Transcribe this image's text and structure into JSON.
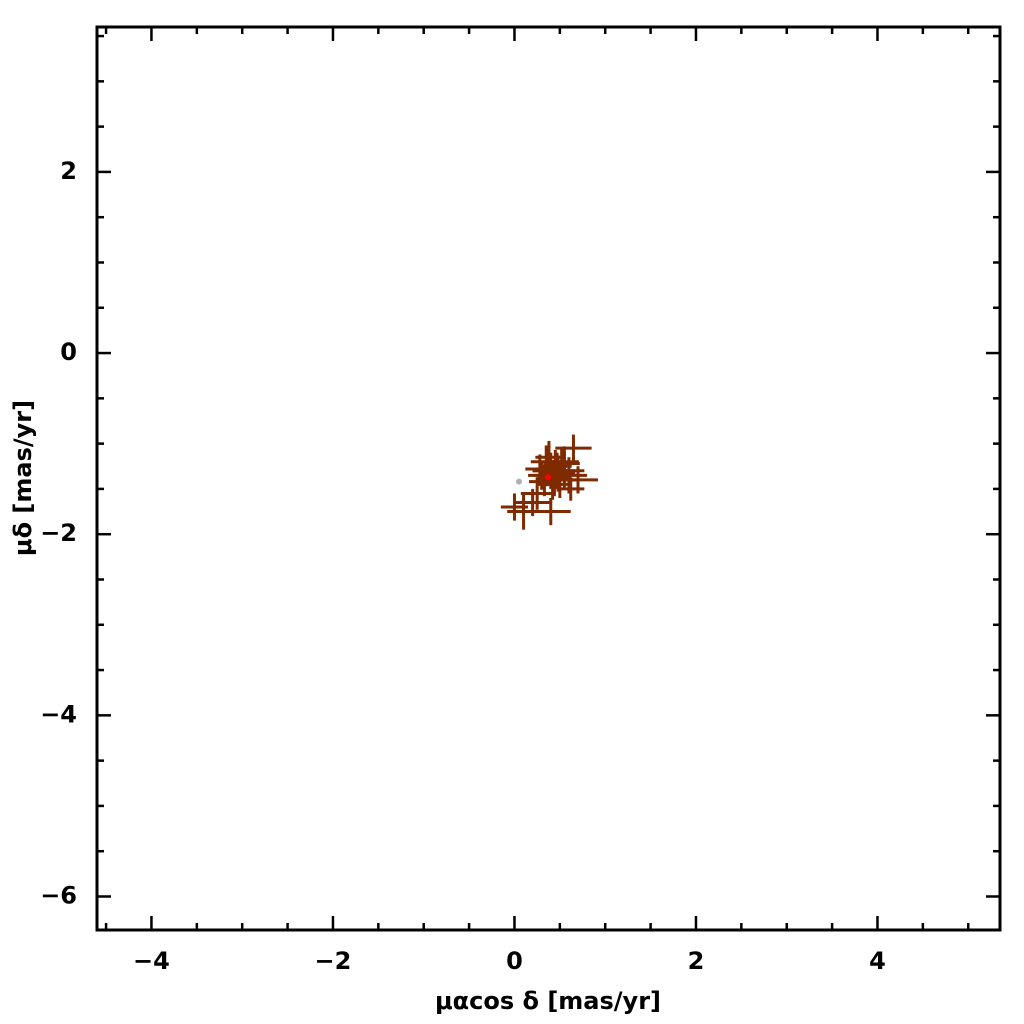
{
  "chart_data": {
    "type": "scatter",
    "xlabel": "μαcos δ [mas/yr]",
    "ylabel": "μδ [mas/yr]",
    "xlim": [
      -4.6,
      5.35
    ],
    "ylim": [
      -6.37,
      3.6
    ],
    "xticks": [
      {
        "value": -4,
        "label": "−4"
      },
      {
        "value": -2,
        "label": "−2"
      },
      0,
      2,
      4
    ],
    "yticks": [
      {
        "value": -6,
        "label": "−6"
      },
      {
        "value": -4,
        "label": "−4"
      },
      {
        "value": -2,
        "label": "−2"
      },
      0,
      2
    ],
    "xminorticks": [
      -4.5,
      -3.5,
      -3,
      -2.5,
      -1.5,
      -1,
      -0.5,
      0.5,
      1,
      1.5,
      2.5,
      3,
      3.5,
      4.5,
      5
    ],
    "yminorticks": [
      -5.5,
      -5,
      -4.5,
      -3.5,
      -3,
      -2.5,
      -1.5,
      -1,
      -0.5,
      0.5,
      1,
      1.5,
      2.5,
      3,
      3.5
    ],
    "series": [
      {
        "color": "#7f2a00",
        "x": [
          0.4,
          0.45,
          0.3,
          0.5,
          0.35,
          0.55,
          0.42,
          0.28,
          0.6,
          0.38,
          0.48,
          0.33,
          0.52,
          0.44,
          0.36,
          0.65,
          0.7,
          0.62,
          0.1,
          0.0,
          0.2,
          0.4,
          0.25,
          0.55,
          0.47
        ],
        "y": [
          -1.3,
          -1.25,
          -1.35,
          -1.4,
          -1.2,
          -1.3,
          -1.45,
          -1.28,
          -1.35,
          -1.15,
          -1.33,
          -1.42,
          -1.22,
          -1.38,
          -1.3,
          -1.05,
          -1.4,
          -1.5,
          -1.75,
          -1.7,
          -1.65,
          -1.75,
          -1.55,
          -1.2,
          -1.3
        ],
        "xerr": [
          0.2,
          0.18,
          0.15,
          0.2,
          0.17,
          0.22,
          0.18,
          0.16,
          0.2,
          0.15,
          0.19,
          0.17,
          0.2,
          0.18,
          0.16,
          0.2,
          0.22,
          0.15,
          0.18,
          0.15,
          0.2,
          0.22,
          0.18,
          0.16,
          0.2
        ],
        "yerr": [
          0.2,
          0.18,
          0.16,
          0.2,
          0.18,
          0.2,
          0.17,
          0.16,
          0.2,
          0.18,
          0.2,
          0.16,
          0.18,
          0.2,
          0.17,
          0.15,
          0.15,
          0.13,
          0.2,
          0.15,
          0.15,
          0.15,
          0.18,
          0.17,
          0.2
        ]
      },
      {
        "color": "#b0b0b0",
        "x": [
          0.05
        ],
        "y": [
          -1.42
        ]
      },
      {
        "color": "#ff0000",
        "x": [
          0.37
        ],
        "y": [
          -1.37
        ]
      }
    ]
  }
}
